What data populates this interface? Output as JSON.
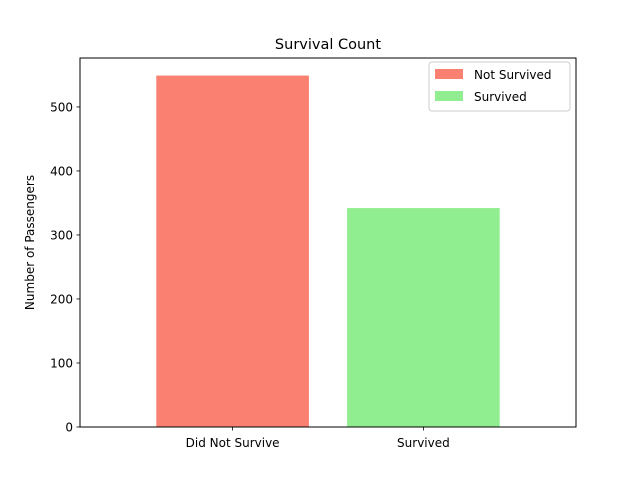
{
  "chart_data": {
    "type": "bar",
    "title": "Survival Count",
    "xlabel": "",
    "ylabel": "Number of Passengers",
    "categories": [
      "Did Not Survive",
      "Survived"
    ],
    "values": [
      549,
      342
    ],
    "bar_colors": [
      "#fa8072",
      "#90ee90"
    ],
    "ylim": [
      0,
      576.45
    ],
    "yticks": [
      0,
      100,
      200,
      300,
      400,
      500
    ],
    "legend": {
      "placement": "upper right",
      "entries": [
        {
          "label": "Not Survived",
          "color": "#fa8072"
        },
        {
          "label": "Survived",
          "color": "#90ee90"
        }
      ]
    },
    "grid": false
  }
}
